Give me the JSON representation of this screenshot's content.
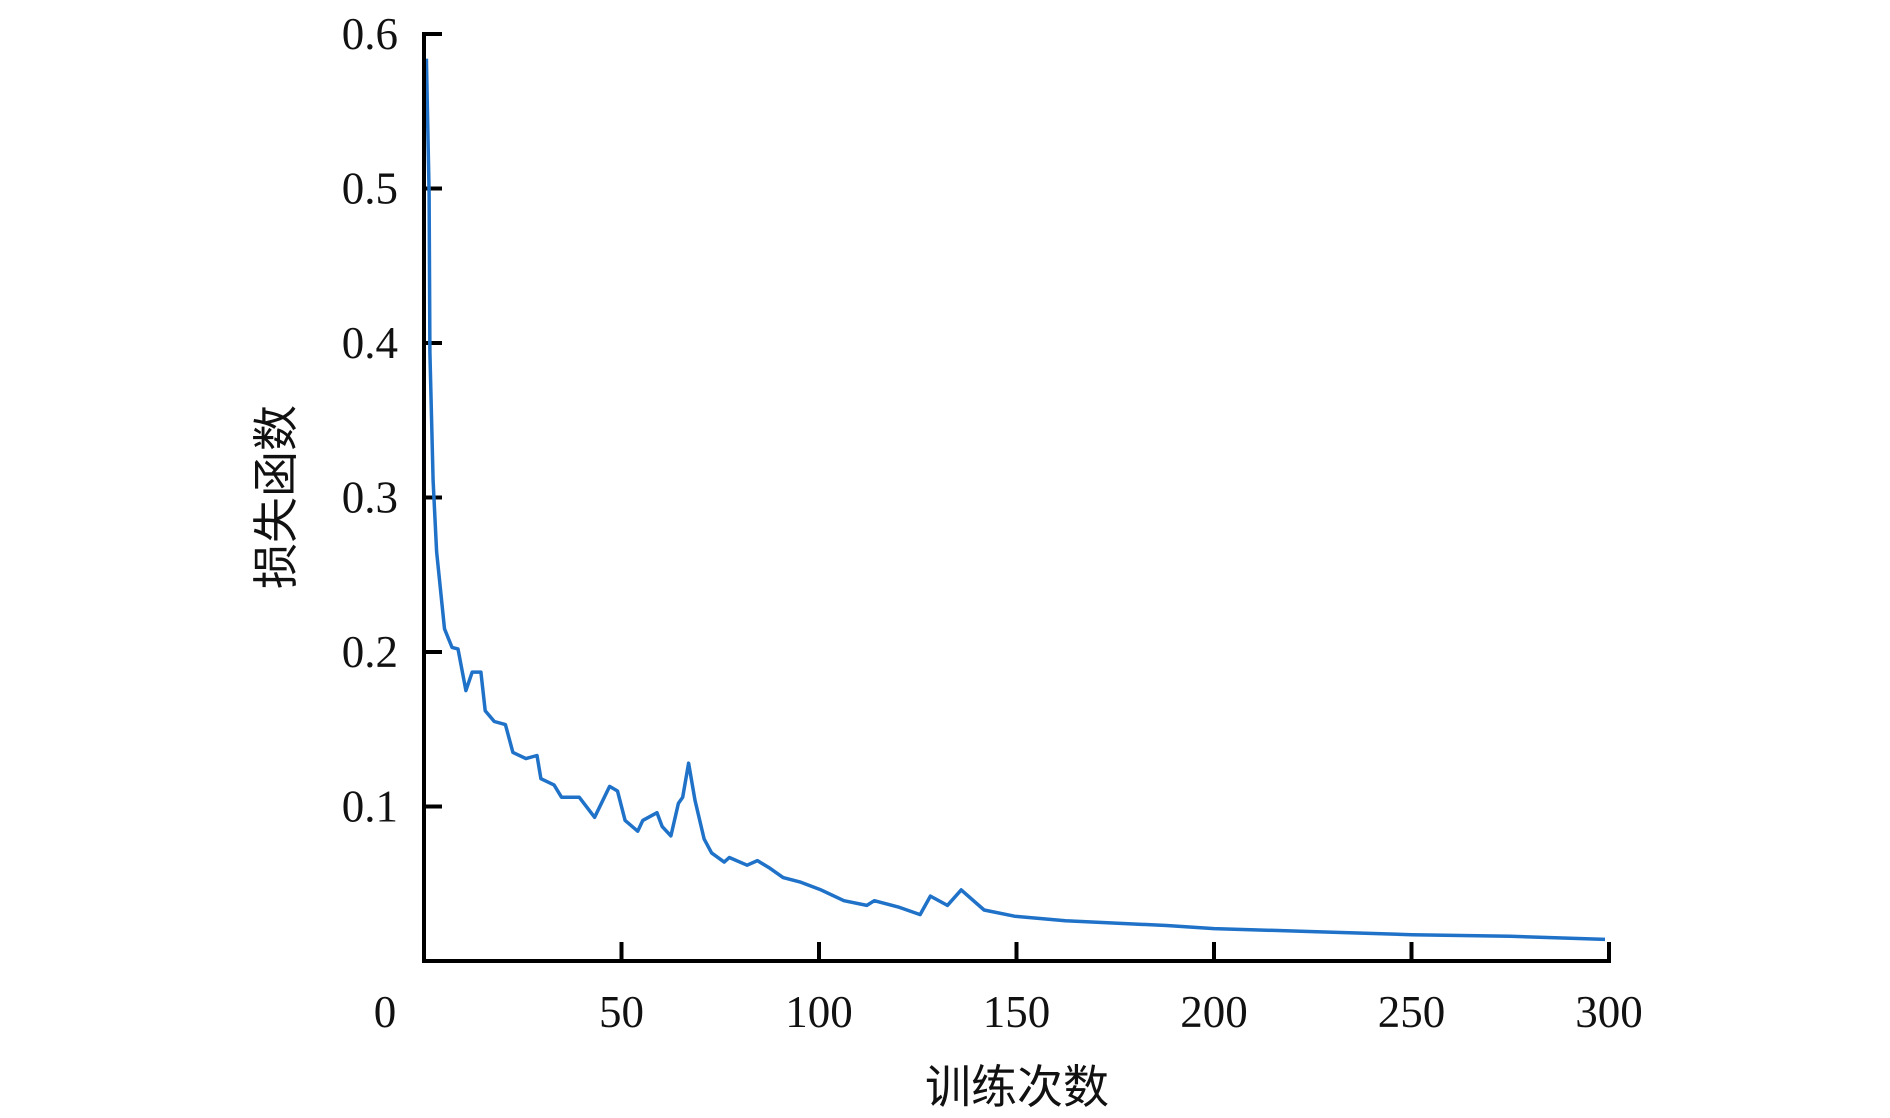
{
  "chart_data": {
    "type": "line",
    "title": "",
    "xlabel": "训练次数",
    "ylabel": "损失函数",
    "xlim": [
      0,
      300
    ],
    "ylim": [
      0,
      0.6
    ],
    "x_ticks": [
      "0",
      "50",
      "100",
      "150",
      "200",
      "250",
      "300"
    ],
    "x_tick_values": [
      0,
      50,
      100,
      150,
      200,
      250,
      300
    ],
    "y_ticks": [
      "0.1",
      "0.2",
      "0.3",
      "0.4",
      "0.5",
      "0.6"
    ],
    "y_tick_values": [
      0.1,
      0.2,
      0.3,
      0.4,
      0.5,
      0.6
    ],
    "grid": false,
    "legend": "none",
    "color": "#1f72c8",
    "series": [
      {
        "x": [
          0.6,
          1.3,
          1.5,
          2.3,
          3.2,
          5.2,
          7.1,
          8.6,
          10.6,
          12.2,
          14.4,
          15.5,
          17.8,
          20.6,
          22.5,
          25.8,
          28.6,
          29.6,
          32.9,
          34.8,
          39.3,
          43.2,
          47.0,
          49.0,
          50.9,
          54.1,
          55.4,
          59.0,
          60.3,
          62.5,
          64.4,
          65.5,
          67.0,
          68.6,
          70.9,
          72.8,
          76.0,
          77.3,
          81.8,
          84.4,
          87.6,
          90.9,
          95.4,
          100.5,
          106.3,
          112.1,
          114.0,
          120.0,
          125.6,
          128.2,
          132.5,
          136.0,
          141.8,
          149.5,
          162.4,
          188.0,
          200.0,
          225.0,
          250.0,
          275.0,
          299.0
        ],
        "y": [
          0.584,
          0.497,
          0.394,
          0.311,
          0.265,
          0.215,
          0.203,
          0.202,
          0.175,
          0.187,
          0.187,
          0.162,
          0.155,
          0.153,
          0.135,
          0.131,
          0.133,
          0.118,
          0.114,
          0.106,
          0.106,
          0.093,
          0.113,
          0.11,
          0.091,
          0.084,
          0.091,
          0.096,
          0.087,
          0.081,
          0.102,
          0.106,
          0.128,
          0.104,
          0.079,
          0.07,
          0.064,
          0.067,
          0.062,
          0.065,
          0.06,
          0.054,
          0.051,
          0.046,
          0.039,
          0.036,
          0.039,
          0.035,
          0.03,
          0.042,
          0.036,
          0.046,
          0.033,
          0.029,
          0.026,
          0.023,
          0.021,
          0.019,
          0.017,
          0.016,
          0.014
        ]
      }
    ]
  }
}
